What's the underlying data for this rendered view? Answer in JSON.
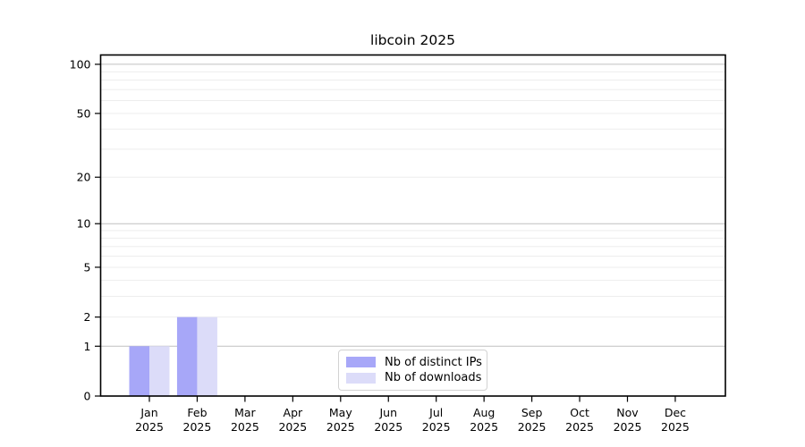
{
  "chart_data": {
    "type": "bar",
    "title": "libcoin 2025",
    "categories": [
      "Jan",
      "Feb",
      "Mar",
      "Apr",
      "May",
      "Jun",
      "Jul",
      "Aug",
      "Sep",
      "Oct",
      "Nov",
      "Dec"
    ],
    "category_year": "2025",
    "series": [
      {
        "name": "Nb of distinct IPs",
        "color": "#a7a7f8",
        "values": [
          1,
          2,
          0,
          0,
          0,
          0,
          0,
          0,
          0,
          0,
          0,
          0
        ]
      },
      {
        "name": "Nb of downloads",
        "color": "#dcdcf9",
        "values": [
          1,
          2,
          0,
          0,
          0,
          0,
          0,
          0,
          0,
          0,
          0,
          0
        ]
      }
    ],
    "y_scale": "log1p",
    "ylim": [
      0,
      114
    ],
    "y_ticks": [
      0,
      1,
      2,
      5,
      10,
      20,
      50,
      100
    ],
    "y_major_gridlines": [
      1,
      10,
      100
    ],
    "y_minor_gridlines": [
      2,
      3,
      4,
      5,
      6,
      7,
      8,
      9,
      20,
      30,
      40,
      50,
      60,
      70,
      80,
      90
    ],
    "legend_position": "lower center",
    "grid_on": true,
    "colors": {
      "grid_major": "#c0c0c0",
      "grid_minor": "#ededed",
      "axis": "#000000",
      "background": "#ffffff"
    }
  }
}
